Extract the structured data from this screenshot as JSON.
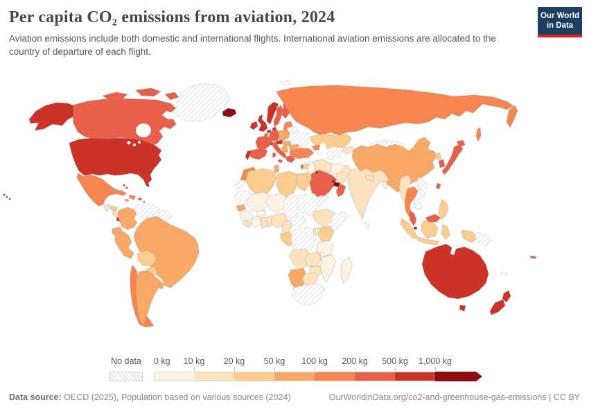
{
  "header": {
    "title": "Per capita CO₂ emissions from aviation, 2024",
    "subtitle": "Aviation emissions include both domestic and international flights. International aviation emissions are allocated to the country of departure of each flight.",
    "logo_line1": "Our World",
    "logo_line2": "in Data",
    "logo_bg": "#1d3d63",
    "logo_bar": "#dc2227"
  },
  "legend": {
    "no_data_label": "No data",
    "tick_labels": [
      "0 kg",
      "10 kg",
      "20 kg",
      "50 kg",
      "100 kg",
      "200 kg",
      "500 kg",
      "1,000 kg"
    ],
    "bucket_colors": [
      "#FDF1E1",
      "#FCE3BD",
      "#FACD8E",
      "#F9A867",
      "#F6854F",
      "#E8604A",
      "#CB3228",
      "#8F0D12"
    ]
  },
  "footer": {
    "source_label": "Data source:",
    "source_text": " OECD (2025), Population based on various sources (2024)",
    "link_text": "OurWorldinData.org/co2-and-greenhouse-gas-emissions | CC BY"
  },
  "chart_data": {
    "type": "heatmap",
    "title": "Per capita CO₂ emissions from aviation, 2024",
    "unit": "kg",
    "legend_buckets": [
      "0-10",
      "10-20",
      "20-50",
      "50-100",
      "100-200",
      "200-500",
      "500-1000",
      "1000+"
    ],
    "note": "choropleth world map; bucket index per country listed in map.countries"
  },
  "map": {
    "countries": {
      "greenland": "nodata",
      "canada": 5,
      "united-states": 6,
      "mexico": 4,
      "guatemala": 1,
      "honduras": 2,
      "nicaragua": 1,
      "costa-rica": 6,
      "panama": 5,
      "cuba": 4,
      "hispaniola": 4,
      "jamaica": 3,
      "puerto-rico": 5,
      "bahamas": 6,
      "lesser-antilles": 5,
      "trinidad": 5,
      "venezuela": "nodata",
      "guyanas": "nodata",
      "colombia": 3,
      "ecuador": 3,
      "peru": 3,
      "brazil": 3,
      "bolivia": 2,
      "paraguay": 2,
      "uruguay": 3,
      "chile": 4,
      "argentina": 3,
      "iceland": 7,
      "ireland": 6,
      "united-kingdom": 6,
      "norway": 6,
      "sweden": 5,
      "finland": 5,
      "denmark": 6,
      "baltics": 4,
      "belarus": "nodata",
      "poland": 3,
      "germany": 5,
      "netherlands": 6,
      "belgium": 5,
      "france": 5,
      "switzerland": 6,
      "austria": 6,
      "czechia": 3,
      "slovakia-hungary": 3,
      "ukraine": "nodata",
      "romania": 3,
      "serbia-balkans": 3,
      "bulgaria": 3,
      "albania": 3,
      "greece": 5,
      "italy": 5,
      "spain": 5,
      "portugal": 6,
      "svalbard": "nodata",
      "russia": 4,
      "kazakhstan": 2,
      "turkmen-uzbek": "nodata",
      "kyrgyz-tajik": 1,
      "caucasus": 4,
      "mongolia": "nodata",
      "china": 3,
      "north-korea": 2,
      "south-korea": 5,
      "japan": 5,
      "taiwan": 5,
      "india": 1,
      "pakistan": 1,
      "afghanistan": 0,
      "nepal": 1,
      "bangladesh": 0,
      "sri-lanka": "nodata",
      "iran": 1,
      "iraq": 0,
      "syria": "nodata",
      "jordan": 2,
      "israel": 5,
      "turkey": 4,
      "saudi-arabia": 5,
      "kuwait": 6,
      "qatar": 7,
      "uae": 7,
      "oman": 5,
      "yemen": "nodata",
      "myanmar": 1,
      "thailand": 4,
      "laos": "nodata",
      "vietnam": "nodata",
      "cambodia": "nodata",
      "malaysia": 5,
      "singapore": 7,
      "indonesia": 2,
      "papua-new-guinea": "nodata",
      "philippines": 2,
      "fiji": 5,
      "new-caledonia": "nodata",
      "australia": 6,
      "new-zealand": 6,
      "morocco": 4,
      "western-sahara": "nodata",
      "algeria": 2,
      "tunisia": 3,
      "libya": 2,
      "egypt": 2,
      "mauritania": "nodata",
      "mali": 0,
      "niger": 0,
      "chad": "nodata",
      "sudan": "nodata",
      "ethiopia": 1,
      "somalia": "nodata",
      "senegal": 3,
      "guinea": 0,
      "sierra-leone-liberia": 1,
      "cote-divoire": 0,
      "burkina-faso": 0,
      "ghana": 1,
      "togo-benin": 1,
      "nigeria": 1,
      "cameroon": 1,
      "central-african-republic": "nodata",
      "gabon-congo": 2,
      "drc": "nodata",
      "uganda": 1,
      "kenya": 2,
      "tanzania": 0,
      "angola": 1,
      "zambia": 1,
      "malawi": 0,
      "mozambique": 0,
      "zimbabwe": 1,
      "namibia": 3,
      "botswana": 1,
      "south-africa": "nodata",
      "madagascar": 0
    }
  }
}
